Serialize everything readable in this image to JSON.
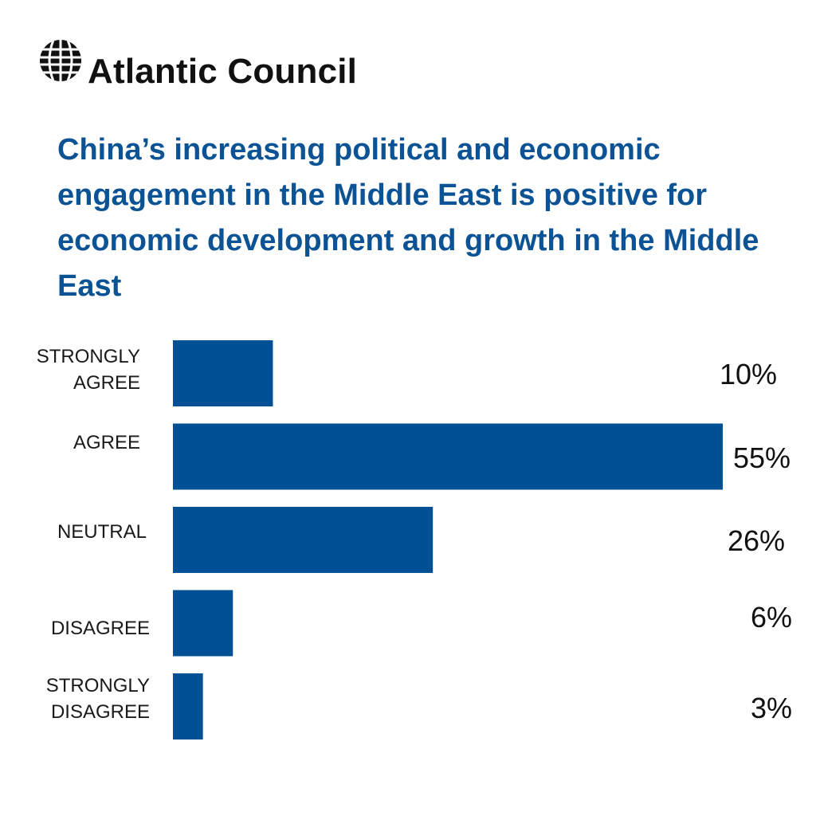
{
  "brand": {
    "name": "Atlantic Council",
    "logo_icon": "globe-grid-icon"
  },
  "colors": {
    "bar": "#005096",
    "title": "#0b5394",
    "text": "#111111"
  },
  "chart_data": {
    "type": "bar",
    "orientation": "horizontal",
    "title": "China’s increasing political and economic engagement in the Middle East is positive for economic development and growth in the Middle East",
    "categories": [
      [
        "STRONGLY",
        "AGREE"
      ],
      [
        "AGREE"
      ],
      [
        "NEUTRAL"
      ],
      [
        "DISAGREE"
      ],
      [
        "STRONGLY",
        "DISAGREE"
      ]
    ],
    "values": [
      10,
      55,
      26,
      6,
      3
    ],
    "value_labels": [
      "10%",
      "55%",
      "26%",
      "6%",
      "3%"
    ],
    "unit": "%",
    "xlim": [
      0,
      55
    ],
    "grid": false,
    "legend": "none"
  }
}
